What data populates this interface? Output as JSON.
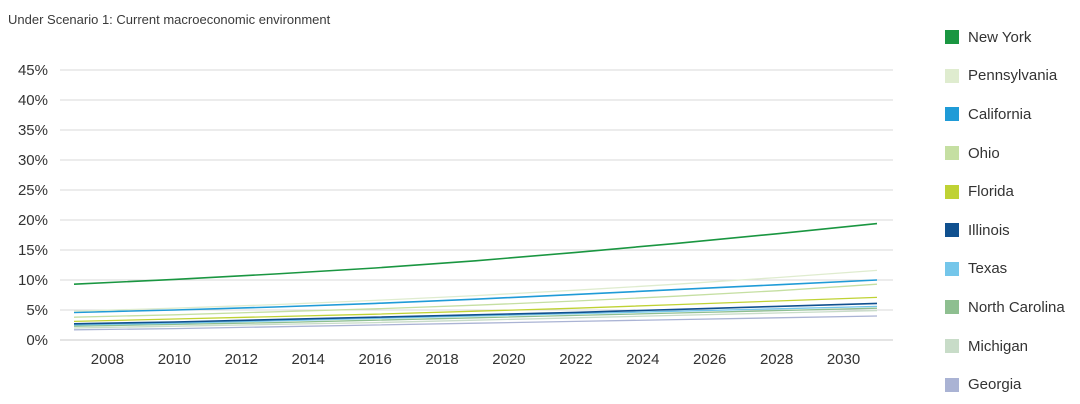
{
  "chart_data": {
    "type": "line",
    "subtitle": "Under Scenario 1: Current macroeconomic environment",
    "ylim": [
      0,
      45
    ],
    "xlim": [
      2007,
      2031
    ],
    "ytick_labels": [
      "45%",
      "40%",
      "35%",
      "30%",
      "25%",
      "20%",
      "15%",
      "10%",
      "5%",
      "0%"
    ],
    "ytick_values": [
      45,
      40,
      35,
      30,
      25,
      20,
      15,
      10,
      5,
      0
    ],
    "xtick_labels": [
      "2008",
      "2010",
      "2012",
      "2014",
      "2016",
      "2018",
      "2020",
      "2022",
      "2024",
      "2026",
      "2028",
      "2030"
    ],
    "grid": "horizontal",
    "legend_position": "right",
    "x": [
      2007,
      2010,
      2013,
      2016,
      2019,
      2022,
      2025,
      2028,
      2031
    ],
    "series": [
      {
        "name": "New York",
        "color": "#1a9641",
        "values": [
          9.3,
          10.1,
          11.0,
          12.0,
          13.2,
          14.6,
          16.1,
          17.7,
          19.4
        ]
      },
      {
        "name": "Pennsylvania",
        "color": "#dfeccf",
        "values": [
          4.8,
          5.3,
          5.9,
          6.6,
          7.4,
          8.3,
          9.3,
          10.4,
          11.6
        ]
      },
      {
        "name": "California",
        "color": "#1f9bd7",
        "values": [
          4.6,
          5.0,
          5.5,
          6.1,
          6.8,
          7.6,
          8.4,
          9.2,
          10.0
        ]
      },
      {
        "name": "Ohio",
        "color": "#c5dfa2",
        "values": [
          3.8,
          4.2,
          4.7,
          5.2,
          5.8,
          6.5,
          7.3,
          8.2,
          9.3
        ]
      },
      {
        "name": "Florida",
        "color": "#bfd234",
        "values": [
          3.1,
          3.5,
          3.9,
          4.3,
          4.8,
          5.3,
          5.9,
          6.5,
          7.1
        ]
      },
      {
        "name": "Illinois",
        "color": "#10508f",
        "values": [
          2.7,
          3.0,
          3.4,
          3.8,
          4.2,
          4.6,
          5.1,
          5.6,
          6.1
        ]
      },
      {
        "name": "Texas",
        "color": "#74c6ea",
        "values": [
          2.5,
          2.8,
          3.2,
          3.6,
          4.0,
          4.4,
          4.8,
          5.2,
          5.6
        ]
      },
      {
        "name": "North Carolina",
        "color": "#8ebf90",
        "values": [
          2.3,
          2.6,
          2.9,
          3.3,
          3.7,
          4.1,
          4.5,
          4.9,
          5.3
        ]
      },
      {
        "name": "Michigan",
        "color": "#c8dcc8",
        "values": [
          2.0,
          2.3,
          2.6,
          2.9,
          3.3,
          3.7,
          4.1,
          4.5,
          4.9
        ]
      },
      {
        "name": "Georgia",
        "color": "#aab3d4",
        "values": [
          1.7,
          1.9,
          2.2,
          2.5,
          2.8,
          3.1,
          3.4,
          3.7,
          4.0
        ]
      }
    ]
  }
}
